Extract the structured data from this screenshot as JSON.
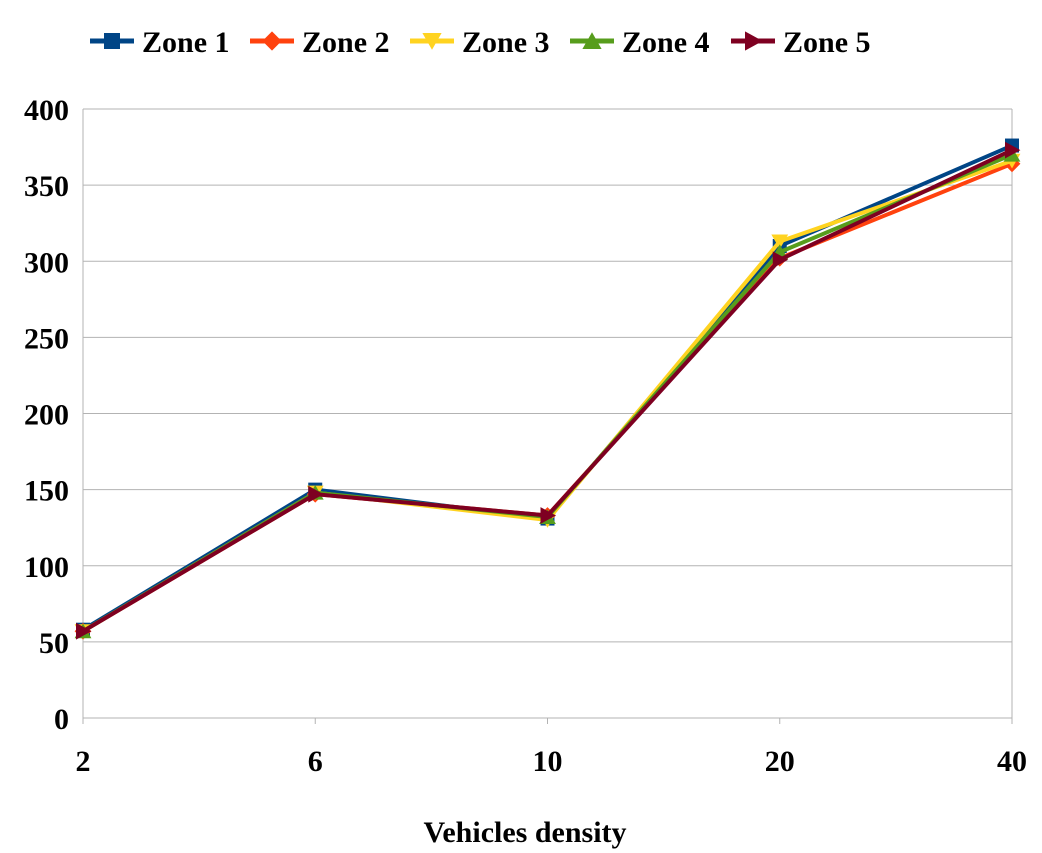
{
  "chart_data": {
    "type": "line",
    "title": "",
    "xlabel": "Vehicles density",
    "ylabel": "",
    "categories": [
      "2",
      "6",
      "10",
      "20",
      "40"
    ],
    "ylim": [
      0,
      400
    ],
    "yticks": [
      0,
      50,
      100,
      150,
      200,
      250,
      300,
      350,
      400
    ],
    "grid": true,
    "legend_position": "top",
    "series": [
      {
        "name": "Zone 1",
        "color": "#004586",
        "marker": "square",
        "values": [
          58,
          150,
          131,
          310,
          376
        ]
      },
      {
        "name": "Zone 2",
        "color": "#ff420e",
        "marker": "diamond",
        "values": [
          57,
          147,
          133,
          302,
          364
        ]
      },
      {
        "name": "Zone 3",
        "color": "#ffd320",
        "marker": "triangle-down",
        "values": [
          57,
          148,
          130,
          313,
          366
        ]
      },
      {
        "name": "Zone 4",
        "color": "#579d1c",
        "marker": "triangle-up",
        "values": [
          57,
          148,
          132,
          306,
          370
        ]
      },
      {
        "name": "Zone 5",
        "color": "#7e0021",
        "marker": "triangle-right",
        "values": [
          57,
          147,
          133,
          301,
          373
        ]
      }
    ]
  }
}
